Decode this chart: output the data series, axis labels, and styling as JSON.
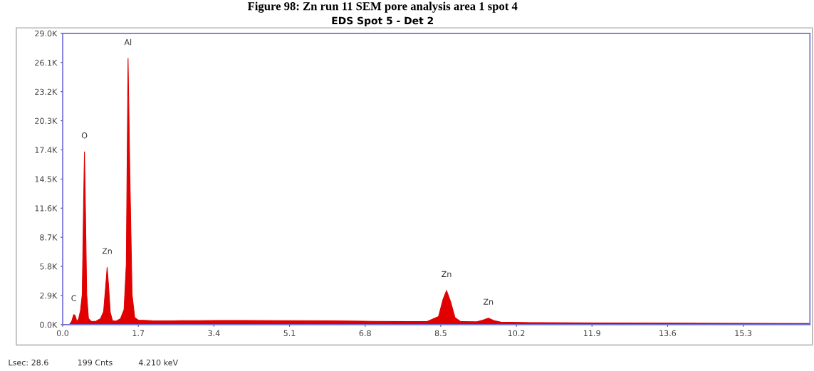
{
  "chart_data": {
    "type": "area",
    "title": "Figure 98: Zn run 11 SEM pore analysis area 1 spot 4",
    "subtitle": "EDS Spot 5 - Det 2",
    "series": [
      {
        "color": "#e00000",
        "x": [
          0.15,
          0.2,
          0.25,
          0.28,
          0.32,
          0.36,
          0.4,
          0.44,
          0.47,
          0.49,
          0.51,
          0.54,
          0.58,
          0.65,
          0.75,
          0.85,
          0.92,
          0.97,
          1.0,
          1.03,
          1.07,
          1.12,
          1.2,
          1.3,
          1.38,
          1.43,
          1.47,
          1.51,
          1.56,
          1.62,
          1.7,
          2.0,
          2.5,
          3.0,
          3.5,
          4.0,
          5.0,
          6.0,
          7.0,
          7.8,
          8.2,
          8.45,
          8.55,
          8.63,
          8.72,
          8.82,
          8.95,
          9.3,
          9.45,
          9.57,
          9.7,
          9.85,
          10.5,
          12.0,
          14.0,
          16.8
        ],
        "values": [
          0,
          300,
          1000,
          900,
          300,
          600,
          1400,
          3000,
          12000,
          17200,
          12000,
          3000,
          600,
          300,
          350,
          600,
          1300,
          4000,
          5700,
          4000,
          1200,
          400,
          350,
          600,
          1500,
          6000,
          26500,
          15000,
          3000,
          700,
          450,
          400,
          380,
          400,
          420,
          420,
          400,
          380,
          330,
          300,
          320,
          800,
          2500,
          3400,
          2300,
          700,
          300,
          280,
          450,
          650,
          400,
          250,
          200,
          170,
          140,
          120
        ]
      }
    ],
    "xlim": [
      0,
      16.8
    ],
    "xticks": [
      {
        "value": 0,
        "label": "0.0"
      },
      1.7,
      3.4,
      5.1,
      6.8,
      8.5,
      10.2,
      11.9,
      13.6,
      15.3
    ],
    "ylim": [
      0,
      29000
    ],
    "yticks": [
      {
        "value": 0,
        "label": "0.0K"
      },
      {
        "value": 2900,
        "label": "2.9K"
      },
      {
        "value": 5800,
        "label": "5.8K"
      },
      {
        "value": 8700,
        "label": "8.7K"
      },
      {
        "value": 11600,
        "label": "11.6K"
      },
      {
        "value": 14500,
        "label": "14.5K"
      },
      {
        "value": 17400,
        "label": "17.4K"
      },
      {
        "value": 20300,
        "label": "20.3K"
      },
      {
        "value": 23200,
        "label": "23.2K"
      },
      {
        "value": 26100,
        "label": "26.1K"
      },
      {
        "value": 29000,
        "label": "29.0K"
      }
    ],
    "grid": false,
    "legend": false,
    "annotations": [
      {
        "text": "C",
        "x": 0.25,
        "y": 1000
      },
      {
        "text": "O",
        "x": 0.49,
        "y": 17200
      },
      {
        "text": "Zn",
        "x": 1.0,
        "y": 5700
      },
      {
        "text": "Al",
        "x": 1.47,
        "y": 26500
      },
      {
        "text": "Zn",
        "x": 8.63,
        "y": 3400
      },
      {
        "text": "Zn",
        "x": 9.57,
        "y": 650
      },
      "Lsec: 28.6",
      "199 Cnts",
      "4.210 keV"
    ]
  }
}
